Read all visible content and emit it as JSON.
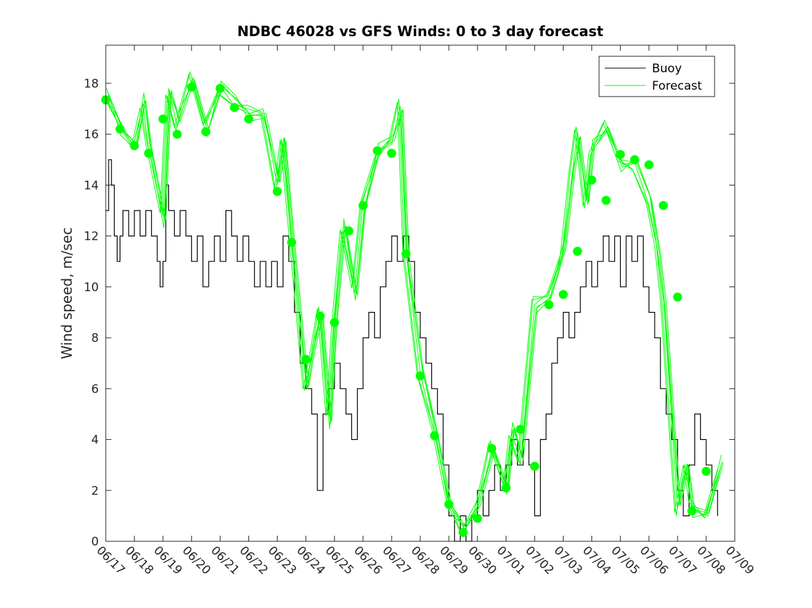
{
  "chart_data": {
    "type": "line",
    "title": "NDBC 46028 vs GFS Winds: 0 to 3 day forecast",
    "xlabel": "",
    "ylabel": "Wind speed, m/sec",
    "x_ticks": [
      "06/17",
      "06/18",
      "06/19",
      "06/20",
      "06/21",
      "06/22",
      "06/23",
      "06/24",
      "06/25",
      "06/26",
      "06/27",
      "06/28",
      "06/29",
      "06/30",
      "07/01",
      "07/02",
      "07/03",
      "07/04",
      "07/05",
      "07/06",
      "07/07",
      "07/08",
      "07/09"
    ],
    "y_ticks": [
      "0",
      "2",
      "4",
      "6",
      "8",
      "10",
      "12",
      "14",
      "16",
      "18"
    ],
    "xlim_days": [
      0,
      22
    ],
    "ylim": [
      0,
      19.5
    ],
    "grid": false,
    "legend_position": "top-right",
    "colors": {
      "buoy": "#000000",
      "forecast": "#00ff00",
      "axes": "#262626"
    },
    "legend": [
      {
        "name": "Buoy",
        "color": "#000000",
        "marker": "line"
      },
      {
        "name": "Forecast",
        "color": "#00ff00",
        "marker": "line"
      }
    ],
    "series": [
      {
        "name": "Buoy",
        "type": "line",
        "points": [
          [
            0.0,
            13
          ],
          [
            0.1,
            15
          ],
          [
            0.2,
            14
          ],
          [
            0.3,
            12
          ],
          [
            0.4,
            11
          ],
          [
            0.5,
            12
          ],
          [
            0.6,
            13
          ],
          [
            0.8,
            12
          ],
          [
            1.0,
            13
          ],
          [
            1.2,
            12
          ],
          [
            1.4,
            13
          ],
          [
            1.6,
            12
          ],
          [
            1.8,
            11
          ],
          [
            1.9,
            10
          ],
          [
            2.0,
            11
          ],
          [
            2.1,
            14
          ],
          [
            2.2,
            13
          ],
          [
            2.4,
            12
          ],
          [
            2.6,
            13
          ],
          [
            2.8,
            12
          ],
          [
            3.0,
            11
          ],
          [
            3.2,
            12
          ],
          [
            3.4,
            10
          ],
          [
            3.6,
            11
          ],
          [
            3.8,
            12
          ],
          [
            4.0,
            11
          ],
          [
            4.2,
            13
          ],
          [
            4.4,
            12
          ],
          [
            4.6,
            11
          ],
          [
            4.8,
            12
          ],
          [
            5.0,
            11
          ],
          [
            5.2,
            10
          ],
          [
            5.4,
            11
          ],
          [
            5.6,
            10
          ],
          [
            5.8,
            11
          ],
          [
            6.0,
            10
          ],
          [
            6.2,
            12
          ],
          [
            6.4,
            11
          ],
          [
            6.6,
            9
          ],
          [
            6.8,
            7
          ],
          [
            7.0,
            6
          ],
          [
            7.2,
            5
          ],
          [
            7.4,
            2
          ],
          [
            7.6,
            5
          ],
          [
            7.8,
            6
          ],
          [
            8.0,
            7
          ],
          [
            8.2,
            6
          ],
          [
            8.4,
            5
          ],
          [
            8.6,
            4
          ],
          [
            8.8,
            6
          ],
          [
            9.0,
            8
          ],
          [
            9.2,
            9
          ],
          [
            9.4,
            8
          ],
          [
            9.6,
            10
          ],
          [
            9.8,
            11
          ],
          [
            10.0,
            12
          ],
          [
            10.2,
            11
          ],
          [
            10.4,
            12
          ],
          [
            10.6,
            11
          ],
          [
            10.8,
            9
          ],
          [
            11.0,
            8
          ],
          [
            11.2,
            7
          ],
          [
            11.4,
            6
          ],
          [
            11.6,
            5
          ],
          [
            11.8,
            3
          ],
          [
            12.0,
            1
          ],
          [
            12.2,
            0
          ],
          [
            12.4,
            1
          ],
          [
            12.6,
            0
          ],
          [
            12.8,
            1
          ],
          [
            13.0,
            2
          ],
          [
            13.2,
            1
          ],
          [
            13.4,
            2
          ],
          [
            13.6,
            3
          ],
          [
            13.8,
            2
          ],
          [
            14.0,
            3
          ],
          [
            14.2,
            4
          ],
          [
            14.4,
            3
          ],
          [
            14.6,
            4
          ],
          [
            14.8,
            3
          ],
          [
            15.0,
            1
          ],
          [
            15.2,
            4
          ],
          [
            15.4,
            5
          ],
          [
            15.6,
            7
          ],
          [
            15.8,
            8
          ],
          [
            16.0,
            9
          ],
          [
            16.2,
            8
          ],
          [
            16.4,
            9
          ],
          [
            16.6,
            10
          ],
          [
            16.8,
            11
          ],
          [
            17.0,
            10
          ],
          [
            17.2,
            11
          ],
          [
            17.4,
            12
          ],
          [
            17.6,
            11
          ],
          [
            17.8,
            12
          ],
          [
            18.0,
            10
          ],
          [
            18.2,
            12
          ],
          [
            18.4,
            11
          ],
          [
            18.6,
            12
          ],
          [
            18.8,
            10
          ],
          [
            19.0,
            9
          ],
          [
            19.2,
            8
          ],
          [
            19.4,
            6
          ],
          [
            19.6,
            5
          ],
          [
            19.8,
            4
          ],
          [
            20.0,
            2
          ],
          [
            20.2,
            1
          ],
          [
            20.4,
            3
          ],
          [
            20.6,
            5
          ],
          [
            20.8,
            4
          ],
          [
            21.0,
            3
          ],
          [
            21.2,
            2
          ],
          [
            21.4,
            1
          ]
        ]
      },
      {
        "name": "Forecast",
        "type": "line",
        "points": [
          [
            0.0,
            17.4
          ],
          [
            0.5,
            16.3
          ],
          [
            1.0,
            15.7
          ],
          [
            1.3,
            17.2
          ],
          [
            1.5,
            15.4
          ],
          [
            2.0,
            12.8
          ],
          [
            2.2,
            17.8
          ],
          [
            2.5,
            16.3
          ],
          [
            3.0,
            18.1
          ],
          [
            3.5,
            16.4
          ],
          [
            4.0,
            17.9
          ],
          [
            4.5,
            17.1
          ],
          [
            5.0,
            16.8
          ],
          [
            5.5,
            17.0
          ],
          [
            6.0,
            14.0
          ],
          [
            6.2,
            15.6
          ],
          [
            6.5,
            12.0
          ],
          [
            7.0,
            6.2
          ],
          [
            7.2,
            7.2
          ],
          [
            7.5,
            8.9
          ],
          [
            7.8,
            4.9
          ],
          [
            8.0,
            8.7
          ],
          [
            8.3,
            12.2
          ],
          [
            8.7,
            9.7
          ],
          [
            9.0,
            13.4
          ],
          [
            9.5,
            15.3
          ],
          [
            10.0,
            15.6
          ],
          [
            10.3,
            17.1
          ],
          [
            10.5,
            11.4
          ],
          [
            11.0,
            6.6
          ],
          [
            11.5,
            4.2
          ],
          [
            12.0,
            1.6
          ],
          [
            12.5,
            0.6
          ],
          [
            13.0,
            1.2
          ],
          [
            13.5,
            3.6
          ],
          [
            14.0,
            2.3
          ],
          [
            14.2,
            4.4
          ],
          [
            14.5,
            3.0
          ],
          [
            15.0,
            9.3
          ],
          [
            15.5,
            9.8
          ],
          [
            16.0,
            11.4
          ],
          [
            16.3,
            14.3
          ],
          [
            16.5,
            16.1
          ],
          [
            16.8,
            13.4
          ],
          [
            17.0,
            15.3
          ],
          [
            17.5,
            16.2
          ],
          [
            18.0,
            15.0
          ],
          [
            18.5,
            14.9
          ],
          [
            19.0,
            13.2
          ],
          [
            19.3,
            11.4
          ],
          [
            19.5,
            9.6
          ],
          [
            20.0,
            1.3
          ],
          [
            20.3,
            2.8
          ],
          [
            20.5,
            1.4
          ],
          [
            21.0,
            1.2
          ],
          [
            21.5,
            2.9
          ]
        ]
      }
    ],
    "forecast_markers": {
      "name": "Forecast",
      "type": "scatter",
      "color": "#00ff00",
      "points": [
        [
          0.0,
          17.35
        ],
        [
          0.5,
          16.2
        ],
        [
          1.0,
          15.55
        ],
        [
          1.5,
          15.25
        ],
        [
          2.0,
          16.6
        ],
        [
          2.5,
          16.0
        ],
        [
          3.0,
          17.85
        ],
        [
          3.5,
          16.1
        ],
        [
          4.0,
          17.8
        ],
        [
          4.5,
          17.05
        ],
        [
          5.0,
          16.6
        ],
        [
          6.0,
          13.75
        ],
        [
          6.5,
          11.75
        ],
        [
          7.0,
          7.15
        ],
        [
          7.5,
          8.85
        ],
        [
          8.0,
          8.6
        ],
        [
          8.5,
          12.2
        ],
        [
          9.0,
          13.2
        ],
        [
          9.5,
          15.35
        ],
        [
          10.0,
          15.25
        ],
        [
          10.5,
          11.3
        ],
        [
          11.0,
          6.5
        ],
        [
          11.5,
          4.15
        ],
        [
          12.0,
          1.45
        ],
        [
          12.5,
          0.35
        ],
        [
          13.0,
          0.9
        ],
        [
          13.5,
          3.65
        ],
        [
          14.0,
          2.1
        ],
        [
          14.5,
          4.4
        ],
        [
          15.0,
          2.95
        ],
        [
          15.5,
          9.3
        ],
        [
          16.0,
          9.7
        ],
        [
          16.5,
          11.4
        ],
        [
          17.0,
          14.2
        ],
        [
          17.5,
          13.4
        ],
        [
          18.0,
          15.2
        ],
        [
          18.5,
          15.0
        ],
        [
          19.0,
          14.8
        ],
        [
          19.5,
          13.2
        ],
        [
          20.0,
          9.6
        ],
        [
          20.5,
          1.2
        ],
        [
          21.0,
          2.75
        ]
      ]
    }
  }
}
